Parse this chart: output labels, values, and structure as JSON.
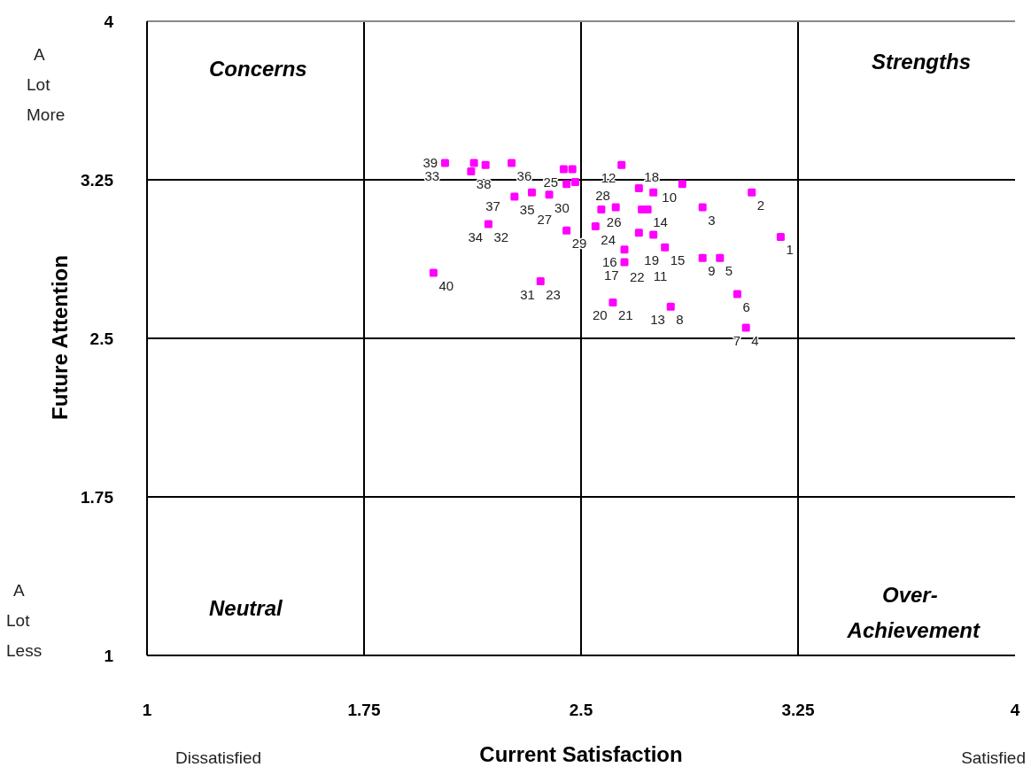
{
  "chart_data": {
    "type": "scatter",
    "xlabel": "Current Satisfaction",
    "ylabel": "Future Attention",
    "xlim": [
      1,
      4
    ],
    "ylim": [
      1,
      4
    ],
    "xticks": [
      1,
      1.75,
      2.5,
      3.25,
      4
    ],
    "yticks": [
      1,
      1.75,
      2.5,
      3.25,
      4
    ],
    "grid": true,
    "marker": "square",
    "series": [
      {
        "color": "#ff00ff",
        "x": [
          2.03,
          2.13,
          2.12,
          2.17,
          2.26,
          2.44,
          2.47,
          2.45,
          2.48,
          2.27,
          2.33,
          2.39,
          2.18,
          2.45,
          2.55,
          1.99,
          2.36,
          2.64,
          2.7,
          2.75,
          2.85,
          3.09,
          2.57,
          2.62,
          2.71,
          2.73,
          2.92,
          2.7,
          2.75,
          3.19,
          2.65,
          2.79,
          2.65,
          2.92,
          2.98,
          3.04,
          2.61,
          2.81,
          3.07
        ],
        "values": [
          3.33,
          3.33,
          3.29,
          3.32,
          3.33,
          3.3,
          3.3,
          3.23,
          3.24,
          3.17,
          3.19,
          3.18,
          3.04,
          3.01,
          3.03,
          2.81,
          2.77,
          3.32,
          3.21,
          3.19,
          3.23,
          3.19,
          3.11,
          3.12,
          3.11,
          3.11,
          3.12,
          3,
          2.99,
          2.98,
          2.92,
          2.93,
          2.86,
          2.88,
          2.88,
          2.71,
          2.67,
          2.65,
          2.55
        ]
      }
    ],
    "annotations": [
      "Concerns",
      "Strengths",
      "Neutral",
      "Over-Achievement",
      "A Lot More",
      "A Lot Less",
      "Dissatisfied",
      "Satisfied",
      {
        "text": "33",
        "x": 2.03,
        "y": 3.33
      },
      {
        "text": "39",
        "x": 2.03,
        "y": 3.33
      },
      {
        "text": "38",
        "x": 2.12,
        "y": 3.29
      },
      {
        "text": "37",
        "x": 2.17,
        "y": 3.32
      },
      {
        "text": "36",
        "x": 2.26,
        "y": 3.33
      },
      {
        "text": "25",
        "x": 2.44,
        "y": 3.3
      },
      {
        "text": "35",
        "x": 2.27,
        "y": 3.17
      },
      {
        "text": "27",
        "x": 2.33,
        "y": 3.19
      },
      {
        "text": "30",
        "x": 2.39,
        "y": 3.18
      },
      {
        "text": "32",
        "x": 2.18,
        "y": 3.04
      },
      {
        "text": "34",
        "x": 2.18,
        "y": 3.04
      },
      {
        "text": "29",
        "x": 2.45,
        "y": 3.01
      },
      {
        "text": "24",
        "x": 2.55,
        "y": 3.03
      },
      {
        "text": "40",
        "x": 1.99,
        "y": 2.81
      },
      {
        "text": "23",
        "x": 2.36,
        "y": 2.77
      },
      {
        "text": "31",
        "x": 2.36,
        "y": 2.77
      },
      {
        "text": "12",
        "x": 2.64,
        "y": 3.32
      },
      {
        "text": "18",
        "x": 2.7,
        "y": 3.21
      },
      {
        "text": "10",
        "x": 2.85,
        "y": 3.23
      },
      {
        "text": "2",
        "x": 3.09,
        "y": 3.19
      },
      {
        "text": "26",
        "x": 2.57,
        "y": 3.11
      },
      {
        "text": "28",
        "x": 2.62,
        "y": 3.12
      },
      {
        "text": "14",
        "x": 2.73,
        "y": 3.11
      },
      {
        "text": "3",
        "x": 2.92,
        "y": 3.12
      },
      {
        "text": "19",
        "x": 2.7,
        "y": 3
      },
      {
        "text": "11",
        "x": 2.75,
        "y": 2.99
      },
      {
        "text": "1",
        "x": 3.19,
        "y": 2.98
      },
      {
        "text": "22",
        "x": 2.65,
        "y": 2.92
      },
      {
        "text": "15",
        "x": 2.79,
        "y": 2.93
      },
      {
        "text": "17",
        "x": 2.65,
        "y": 2.86
      },
      {
        "text": "16",
        "x": 2.65,
        "y": 2.86
      },
      {
        "text": "9",
        "x": 2.92,
        "y": 2.88
      },
      {
        "text": "5",
        "x": 2.98,
        "y": 2.88
      },
      {
        "text": "6",
        "x": 3.04,
        "y": 2.71
      },
      {
        "text": "21",
        "x": 2.61,
        "y": 2.67
      },
      {
        "text": "20",
        "x": 2.61,
        "y": 2.67
      },
      {
        "text": "8",
        "x": 2.81,
        "y": 2.65
      },
      {
        "text": "13",
        "x": 2.81,
        "y": 2.65
      },
      {
        "text": "4",
        "x": 3.07,
        "y": 2.55
      },
      {
        "text": "7",
        "x": 3.07,
        "y": 2.55
      }
    ]
  }
}
